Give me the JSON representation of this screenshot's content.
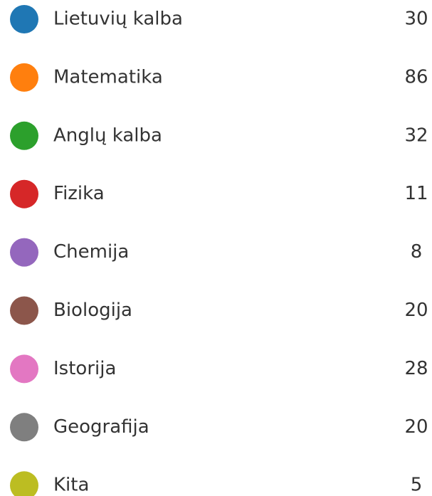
{
  "items": [
    {
      "label": "Lietuvių kalba",
      "count": 30,
      "color": "#1f77b4"
    },
    {
      "label": "Matematika",
      "count": 86,
      "color": "#ff7f0e"
    },
    {
      "label": "Anglų kalba",
      "count": 32,
      "color": "#2ca02c"
    },
    {
      "label": "Fizika",
      "count": 11,
      "color": "#d62728"
    },
    {
      "label": "Chemija",
      "count": 8,
      "color": "#9467bd"
    },
    {
      "label": "Biologija",
      "count": 20,
      "color": "#8c564b"
    },
    {
      "label": "Istorija",
      "count": 28,
      "color": "#e377c2"
    },
    {
      "label": "Geografija",
      "count": 20,
      "color": "#7f7f7f"
    },
    {
      "label": "Kita",
      "count": 5,
      "color": "#bcbd22"
    }
  ]
}
